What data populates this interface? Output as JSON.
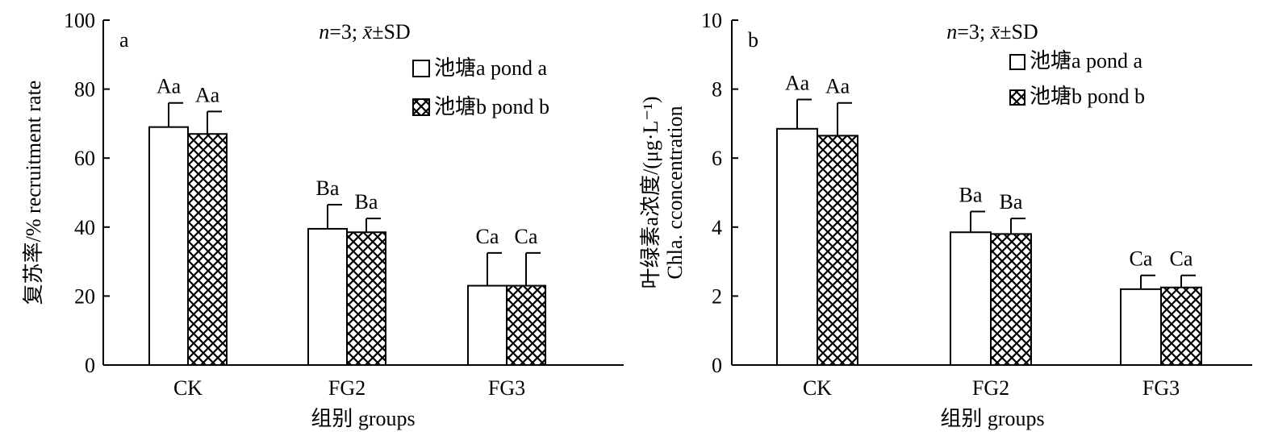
{
  "chart_data": [
    {
      "type": "bar",
      "panel_label": "a",
      "title": "n=3; x̄±SD",
      "xlabel": "组别 groups",
      "ylabel": "复苏率/% recruitment rate",
      "ylim": [
        0,
        100
      ],
      "yticks": [
        0,
        20,
        40,
        60,
        80,
        100
      ],
      "categories": [
        "CK",
        "FG2",
        "FG3"
      ],
      "legend_position": "top-right",
      "series": [
        {
          "name": "池塘a pond a",
          "pattern": "plain",
          "values": [
            69,
            39.5,
            23
          ],
          "errors": [
            7,
            7,
            9.5
          ],
          "labels": [
            "Aa",
            "Ba",
            "Ca"
          ]
        },
        {
          "name": "池塘b pond b",
          "pattern": "checker",
          "values": [
            67,
            38.5,
            23
          ],
          "errors": [
            6.5,
            4,
            9.5
          ],
          "labels": [
            "Aa",
            "Ba",
            "Ca"
          ]
        }
      ]
    },
    {
      "type": "bar",
      "panel_label": "b",
      "title": "n=3; x̄±SD",
      "xlabel": "组别 groups",
      "ylabel": "叶绿素a浓度/(μg·L⁻¹) Chla. cconcentration",
      "ylim": [
        0,
        10
      ],
      "yticks": [
        0,
        2,
        4,
        6,
        8,
        10
      ],
      "categories": [
        "CK",
        "FG2",
        "FG3"
      ],
      "legend_position": "top-right",
      "series": [
        {
          "name": "池塘a pond a",
          "pattern": "plain",
          "values": [
            6.85,
            3.85,
            2.2
          ],
          "errors": [
            0.85,
            0.6,
            0.4
          ],
          "labels": [
            "Aa",
            "Ba",
            "Ca"
          ]
        },
        {
          "name": "池塘b pond b",
          "pattern": "checker",
          "values": [
            6.65,
            3.8,
            2.25
          ],
          "errors": [
            0.95,
            0.45,
            0.35
          ],
          "labels": [
            "Aa",
            "Ba",
            "Ca"
          ]
        }
      ]
    }
  ],
  "colors": {
    "axis": "#000000",
    "bar_fill": "#ffffff",
    "pattern_ink": "#000000"
  }
}
